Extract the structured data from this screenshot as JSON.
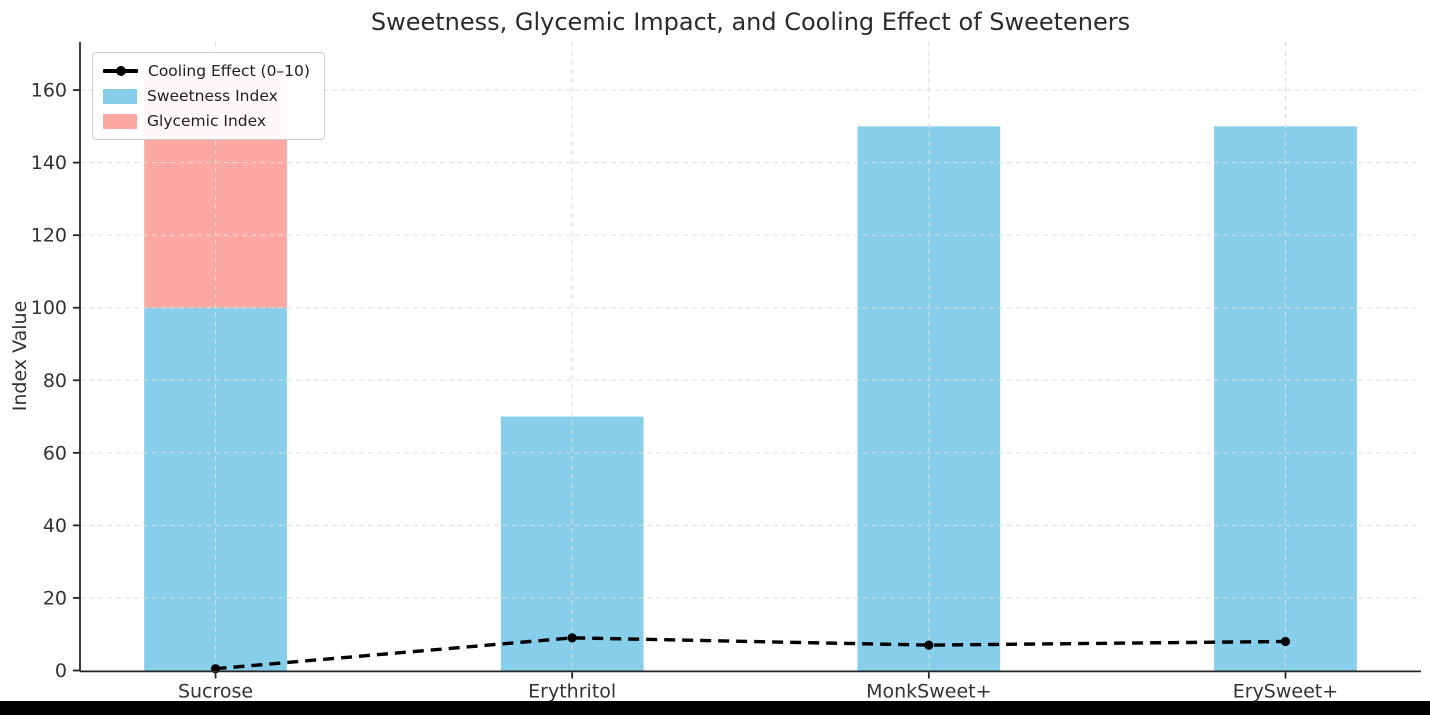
{
  "title": "Sweetness, Glycemic Impact, and Cooling Effect of Sweeteners",
  "legend": {
    "position": "upper left",
    "items": [
      "Cooling Effect (0–10)",
      "Sweetness Index",
      "Glycemic Index"
    ]
  },
  "colors": {
    "sweetness_bar": "#87CEEB",
    "glycemic_bar": "#FBA8A2",
    "cooling_line": "#000000",
    "grid": "#DDDDDD",
    "axis": "#262626",
    "tick_label": "#333333",
    "title_text": "#2b2b2b",
    "bottom_strip": "#000000"
  },
  "chart_data": {
    "type": "bar",
    "subtype": "stacked-bars-with-line-overlay",
    "title": "Sweetness, Glycemic Impact, and Cooling Effect of Sweeteners",
    "xlabel": "",
    "ylabel": "Index Value",
    "categories": [
      "Sucrose",
      "Erythritol",
      "MonkSweet+",
      "ErySweet+"
    ],
    "series": [
      {
        "name": "Cooling Effect (0–10)",
        "type": "line",
        "linestyle": "dashed",
        "marker": "circle",
        "color": "#000000",
        "values": [
          0.5,
          9,
          7,
          8
        ]
      },
      {
        "name": "Sweetness Index",
        "type": "bar",
        "stack": "total",
        "color": "#87CEEB",
        "values": [
          100,
          70,
          150,
          150
        ]
      },
      {
        "name": "Glycemic Index",
        "type": "bar",
        "stack": "total",
        "color": "#FBA8A2",
        "values": [
          65,
          0,
          0,
          0
        ]
      }
    ],
    "stacked_totals": [
      165,
      70,
      150,
      150
    ],
    "yticks": [
      0,
      20,
      40,
      60,
      80,
      100,
      120,
      140,
      160
    ],
    "ylim": [
      0,
      173.25
    ],
    "bar_width_fraction": 0.4,
    "grid": true,
    "grid_style": "dashed",
    "legend_position": "upper left"
  }
}
